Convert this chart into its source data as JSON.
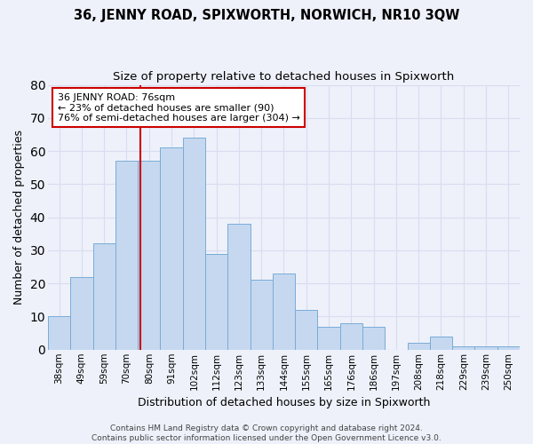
{
  "title1": "36, JENNY ROAD, SPIXWORTH, NORWICH, NR10 3QW",
  "title2": "Size of property relative to detached houses in Spixworth",
  "xlabel": "Distribution of detached houses by size in Spixworth",
  "ylabel": "Number of detached properties",
  "categories": [
    "38sqm",
    "49sqm",
    "59sqm",
    "70sqm",
    "80sqm",
    "91sqm",
    "102sqm",
    "112sqm",
    "123sqm",
    "133sqm",
    "144sqm",
    "155sqm",
    "165sqm",
    "176sqm",
    "186sqm",
    "197sqm",
    "208sqm",
    "218sqm",
    "229sqm",
    "239sqm",
    "250sqm"
  ],
  "values": [
    10,
    22,
    32,
    57,
    57,
    61,
    64,
    29,
    38,
    21,
    23,
    12,
    7,
    8,
    7,
    0,
    2,
    4,
    1,
    1,
    1
  ],
  "bar_color": "#c5d8f0",
  "bar_edge_color": "#7aacd6",
  "annotation_text_line1": "36 JENNY ROAD: 76sqm",
  "annotation_text_line2": "← 23% of detached houses are smaller (90)",
  "annotation_text_line3": "76% of semi-detached houses are larger (304) →",
  "vline_color": "#cc0000",
  "annotation_box_facecolor": "#ffffff",
  "annotation_box_edgecolor": "#cc0000",
  "ylim": [
    0,
    80
  ],
  "yticks": [
    0,
    10,
    20,
    30,
    40,
    50,
    60,
    70,
    80
  ],
  "footer1": "Contains HM Land Registry data © Crown copyright and database right 2024.",
  "footer2": "Contains public sector information licensed under the Open Government Licence v3.0.",
  "background_color": "#eef1fa",
  "grid_color": "#d8ddf0",
  "title1_fontsize": 10.5,
  "title2_fontsize": 9.5,
  "axis_label_fontsize": 9,
  "tick_fontsize": 7.5,
  "annotation_fontsize": 8,
  "footer_fontsize": 6.5,
  "vline_x_index": 3.6
}
